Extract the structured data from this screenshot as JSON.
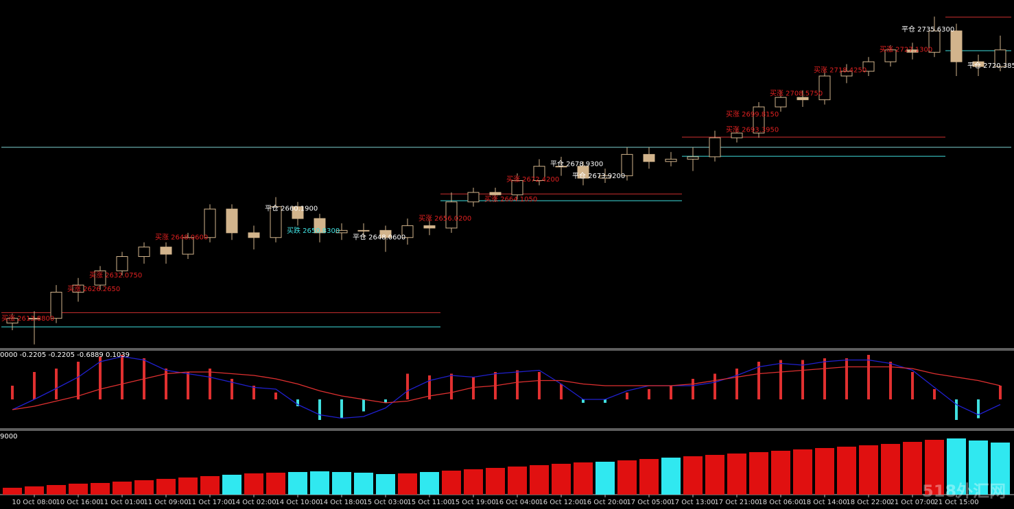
{
  "chart_data": [
    {
      "type": "candlestick",
      "categories": [
        null,
        "10 Oct 08:00",
        null,
        "10 Oct 16:00",
        null,
        "11 Oct 01:00",
        null,
        "11 Oct 09:00",
        null,
        "11 Oct 17:00",
        null,
        "14 Oct 02:00",
        null,
        "14 Oct 10:00",
        null,
        "14 Oct 18:00",
        null,
        "15 Oct 03:00",
        null,
        "15 Oct 11:00",
        null,
        "15 Oct 19:00",
        null,
        "16 Oct 04:00",
        null,
        "16 Oct 12:00",
        null,
        "16 Oct 20:00",
        null,
        "17 Oct 05:00",
        null,
        "17 Oct 13:00",
        null,
        "17 Oct 21:00",
        null,
        "18 Oct 06:00",
        null,
        "18 Oct 14:00",
        null,
        "18 Oct 22:00",
        null,
        "21 Oct 07:00",
        null,
        "21 Oct 15:00",
        null,
        null
      ],
      "open": [
        2612,
        2614,
        2614,
        2625,
        2628,
        2634,
        2640,
        2644,
        2641,
        2648,
        2660,
        2650,
        2648,
        2661,
        2656,
        2650,
        2651,
        2651,
        2648,
        2653,
        2652,
        2663,
        2667,
        2666,
        2672,
        2678,
        2678,
        2673,
        2674,
        2683,
        2680,
        2681,
        2682,
        2690,
        2692,
        2703,
        2707,
        2706,
        2716,
        2718,
        2722,
        2727,
        2726,
        2735,
        2722,
        2720
      ],
      "high": [
        2616,
        2617,
        2628,
        2631,
        2636,
        2642,
        2646,
        2646,
        2650,
        2662,
        2662,
        2653,
        2665,
        2663,
        2658,
        2654,
        2654,
        2653,
        2656,
        2656,
        2667,
        2669,
        2669,
        2675,
        2681,
        2682,
        2680,
        2677,
        2686,
        2686,
        2684,
        2686,
        2693,
        2694,
        2705,
        2710,
        2710,
        2719,
        2721,
        2724,
        2729,
        2730,
        2741,
        2738,
        2725,
        2733
      ],
      "low": [
        2609,
        2603,
        2612,
        2621,
        2626,
        2632,
        2637,
        2637,
        2639,
        2646,
        2647,
        2643,
        2646,
        2653,
        2646,
        2647,
        2648,
        2642,
        2645,
        2649,
        2650,
        2661,
        2663,
        2664,
        2670,
        2674,
        2670,
        2671,
        2672,
        2677,
        2678,
        2676,
        2680,
        2688,
        2690,
        2701,
        2703,
        2704,
        2713,
        2716,
        2720,
        2723,
        2724,
        2716,
        2716,
        2718
      ],
      "close": [
        2614,
        2614,
        2625,
        2628,
        2634,
        2640,
        2644,
        2641,
        2648,
        2660,
        2650,
        2648,
        2661,
        2656,
        2650,
        2651,
        2651,
        2648,
        2653,
        2652,
        2663,
        2667,
        2666,
        2672,
        2678,
        2678,
        2673,
        2674,
        2683,
        2680,
        2681,
        2682,
        2690,
        2692,
        2703,
        2707,
        2706,
        2716,
        2718,
        2722,
        2727,
        2726,
        2735,
        2722,
        2720,
        2727
      ],
      "ylim": [
        2601.5,
        2748
      ],
      "candle_color": "#d2b48c",
      "up_fill": "#000000",
      "down_fill": "#d2b48c",
      "levels": [
        {
          "price": 2686.0,
          "from": 0,
          "to": 45,
          "color": "#7fd4d4"
        },
        {
          "price": 2616.4,
          "from": 0,
          "to": 19,
          "color": "#d03030"
        },
        {
          "price": 2610.4,
          "from": 0,
          "to": 19,
          "color": "#40e0e0"
        },
        {
          "price": 2666.35,
          "from": 20,
          "to": 30,
          "color": "#d03030"
        },
        {
          "price": 2663.5,
          "from": 20,
          "to": 30,
          "color": "#40e0e0"
        },
        {
          "price": 2690.3,
          "from": 31,
          "to": 42,
          "color": "#d03030"
        },
        {
          "price": 2682.2,
          "from": 31,
          "to": 42,
          "color": "#40e0e0"
        },
        {
          "price": 2740.8,
          "from": 43,
          "to": 45,
          "color": "#d03030"
        },
        {
          "price": 2726.65,
          "from": 43,
          "to": 45,
          "color": "#40e0e0"
        }
      ],
      "annotations": [
        {
          "label": "买涨 2613.8800",
          "at": 0,
          "price": 2613.88,
          "color": "#e02020"
        },
        {
          "label": "买涨 2626.2650",
          "at": 3,
          "price": 2626.265,
          "color": "#e02020"
        },
        {
          "label": "买涨 2632.0750",
          "at": 4,
          "price": 2632.075,
          "color": "#e02020"
        },
        {
          "label": "买涨 2648.0600",
          "at": 7,
          "price": 2648.06,
          "color": "#e02020"
        },
        {
          "label": "平仓 2660.1900",
          "at": 12,
          "price": 2660.19,
          "color": "#ffffff"
        },
        {
          "label": "买跌 2650.8300",
          "at": 13,
          "price": 2650.83,
          "color": "#40e0e0"
        },
        {
          "label": "平仓 2648.0600",
          "at": 16,
          "price": 2648.06,
          "color": "#ffffff"
        },
        {
          "label": "买涨 2656.0200",
          "at": 19,
          "price": 2656.02,
          "color": "#e02020"
        },
        {
          "label": "买涨 2664.1050",
          "at": 22,
          "price": 2664.105,
          "color": "#e02020"
        },
        {
          "label": "买涨 2672.4200",
          "at": 23,
          "price": 2672.42,
          "color": "#e02020"
        },
        {
          "label": "平仓 2678.9300",
          "at": 25,
          "price": 2678.93,
          "color": "#ffffff"
        },
        {
          "label": "平仓 2673.9200",
          "at": 26,
          "price": 2673.92,
          "color": "#ffffff"
        },
        {
          "label": "买涨 2693.3950",
          "at": 33,
          "price": 2693.395,
          "color": "#e02020"
        },
        {
          "label": "买涨 2699.8150",
          "at": 33,
          "price": 2699.815,
          "color": "#e02020"
        },
        {
          "label": "买涨 2708.5750",
          "at": 35,
          "price": 2708.575,
          "color": "#e02020"
        },
        {
          "label": "买涨 2718.4250",
          "at": 37,
          "price": 2718.425,
          "color": "#e02020"
        },
        {
          "label": "买涨 2727.1300",
          "at": 40,
          "price": 2727.13,
          "color": "#e02020"
        },
        {
          "label": "平仓 2735.6300",
          "at": 41,
          "price": 2735.63,
          "color": "#ffffff"
        },
        {
          "label": "平仓 2720.3850",
          "at": 44,
          "price": 2720.385,
          "color": "#ffffff"
        }
      ]
    },
    {
      "type": "macd",
      "label": "0000 -0.2205 -0.2205 -0.6889 0.1039",
      "ylim": [
        -1.68,
        2.84
      ],
      "pos_color": "#e03030",
      "neg_color": "#40e0e0",
      "values": [
        0.8,
        1.6,
        1.8,
        2.2,
        2.5,
        2.6,
        2.4,
        1.8,
        1.6,
        1.8,
        1.2,
        0.8,
        0.4,
        -0.4,
        -1.2,
        -1.1,
        -0.7,
        -0.2,
        1.5,
        1.4,
        1.5,
        1.3,
        1.6,
        1.7,
        1.6,
        0.9,
        -0.2,
        -0.2,
        0.4,
        0.6,
        0.8,
        1.2,
        1.5,
        1.8,
        2.2,
        2.3,
        2.3,
        2.4,
        2.4,
        2.6,
        2.2,
        1.6,
        0.6,
        -1.2,
        -1.1,
        0.8
      ],
      "series": [
        {
          "color": "#2020d0",
          "values": [
            -0.6,
            0,
            0.64,
            1.3,
            2.2,
            2.5,
            2.3,
            1.7,
            1.5,
            1.3,
            1.0,
            0.7,
            0.6,
            -0.3,
            -0.9,
            -1.1,
            -1.0,
            -0.5,
            0.5,
            1.1,
            1.4,
            1.3,
            1.5,
            1.6,
            1.7,
            0.9,
            0,
            0,
            0.5,
            0.8,
            0.8,
            0.8,
            1.0,
            1.4,
            1.9,
            2.1,
            2.0,
            2.2,
            2.3,
            2.3,
            2.1,
            1.7,
            0.7,
            -0.3,
            -0.9,
            -0.3
          ]
        },
        {
          "color": "#e03030",
          "values": [
            -0.6,
            -0.4,
            -0.1,
            0.2,
            0.6,
            0.9,
            1.2,
            1.5,
            1.6,
            1.6,
            1.5,
            1.4,
            1.2,
            0.9,
            0.5,
            0.2,
            0,
            -0.2,
            -0.1,
            0.2,
            0.4,
            0.7,
            0.8,
            1.0,
            1.1,
            1.1,
            0.9,
            0.8,
            0.8,
            0.8,
            0.8,
            0.9,
            1.1,
            1.3,
            1.5,
            1.6,
            1.7,
            1.8,
            1.9,
            1.9,
            1.9,
            1.8,
            1.5,
            1.3,
            1.1,
            0.8
          ]
        }
      ]
    },
    {
      "type": "bar",
      "label": "9000",
      "ylim": [
        0,
        92
      ],
      "values": [
        10,
        12,
        14,
        16,
        17,
        19,
        21,
        23,
        25,
        27,
        29,
        31,
        32,
        33,
        34,
        33,
        32,
        30,
        31,
        33,
        35,
        37,
        39,
        41,
        43,
        45,
        47,
        48,
        50,
        52,
        54,
        56,
        58,
        60,
        62,
        64,
        66,
        68,
        70,
        72,
        74,
        77,
        80,
        82,
        79,
        76
      ],
      "colors": [
        "#e01010",
        "#e01010",
        "#e01010",
        "#e01010",
        "#e01010",
        "#e01010",
        "#e01010",
        "#e01010",
        "#e01010",
        "#e01010",
        "#30e8f0",
        "#e01010",
        "#e01010",
        "#30e8f0",
        "#30e8f0",
        "#30e8f0",
        "#30e8f0",
        "#30e8f0",
        "#e01010",
        "#30e8f0",
        "#e01010",
        "#e01010",
        "#e01010",
        "#e01010",
        "#e01010",
        "#e01010",
        "#e01010",
        "#30e8f0",
        "#e01010",
        "#e01010",
        "#30e8f0",
        "#e01010",
        "#e01010",
        "#e01010",
        "#e01010",
        "#e01010",
        "#e01010",
        "#e01010",
        "#e01010",
        "#e01010",
        "#e01010",
        "#e01010",
        "#e01010",
        "#30e8f0",
        "#30e8f0",
        "#30e8f0"
      ]
    }
  ],
  "watermark": "518外汇网"
}
